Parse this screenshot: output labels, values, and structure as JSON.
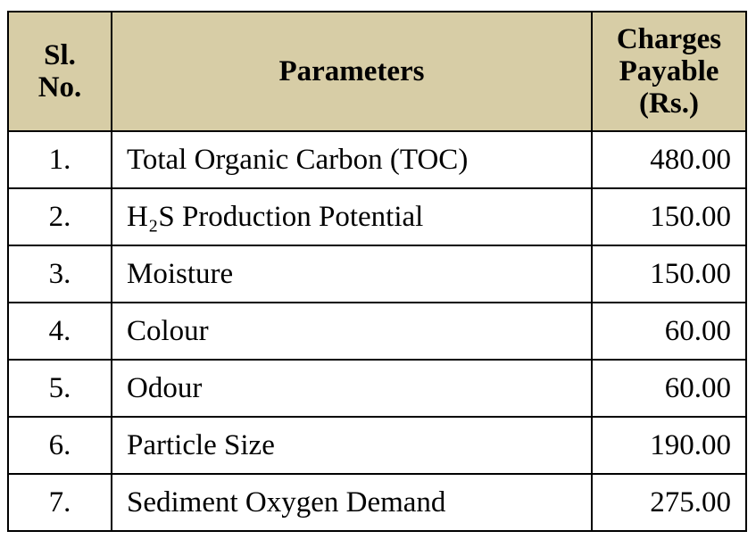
{
  "table": {
    "header": [
      "Sl. No.",
      "Parameters",
      "Charges Payable (Rs.)"
    ],
    "rows": [
      [
        "1.",
        "Total Organic Carbon (TOC)",
        "480.00"
      ],
      [
        "2.",
        "H₂S Production Potential",
        "150.00"
      ],
      [
        "3.",
        "Moisture",
        "150.00"
      ],
      [
        "4.",
        "Colour",
        "60.00"
      ],
      [
        "5.",
        "Odour",
        "60.00"
      ],
      [
        "6.",
        "Particle Size",
        "190.00"
      ],
      [
        "7.",
        "Sediment Oxygen Demand",
        "275.00"
      ]
    ]
  }
}
